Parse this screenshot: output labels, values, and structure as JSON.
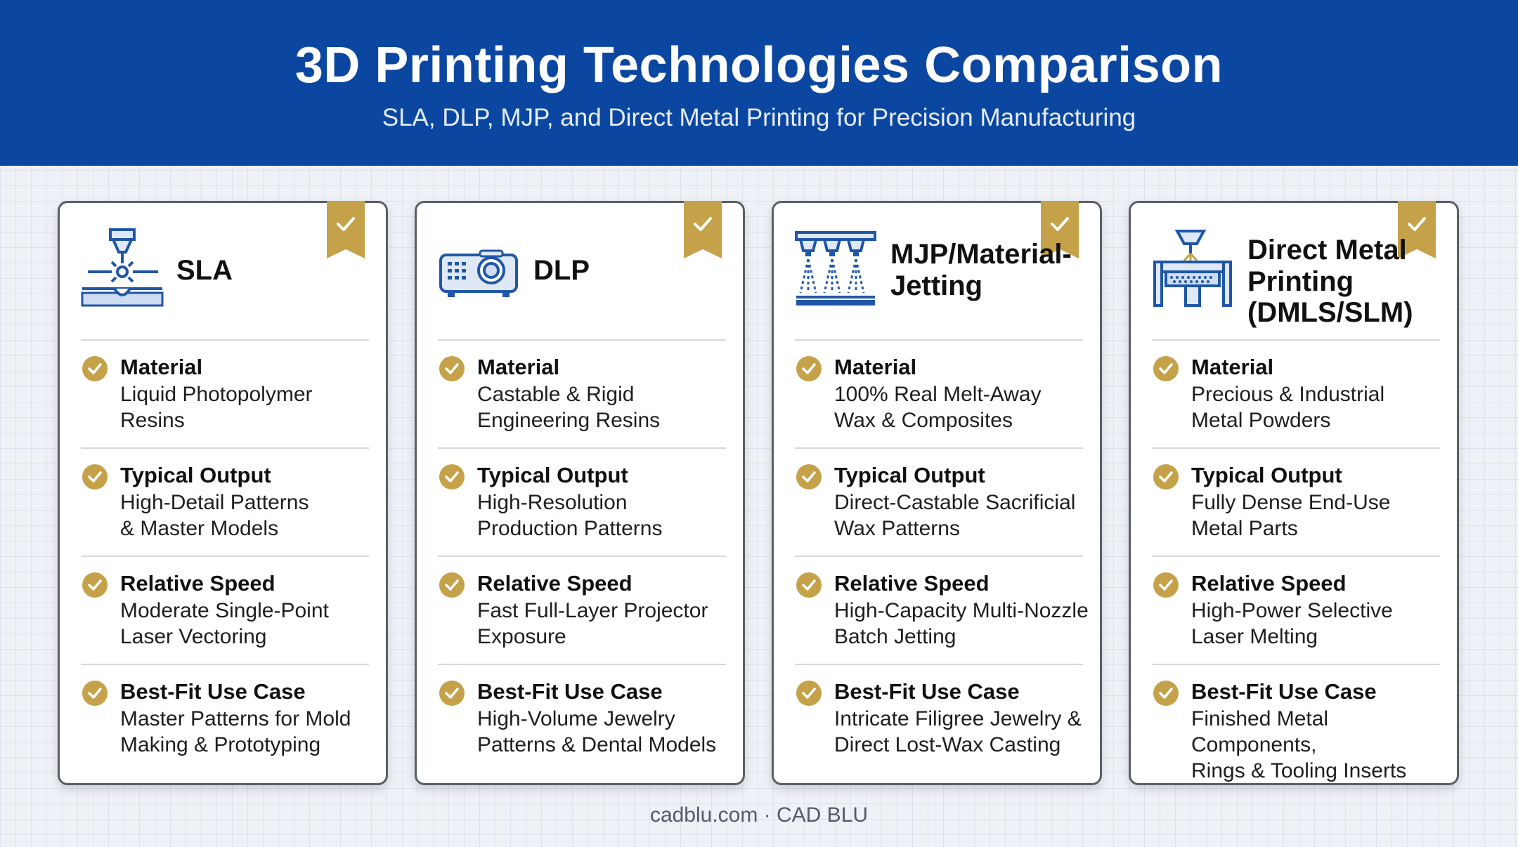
{
  "header": {
    "title": "3D Printing Technologies Comparison",
    "subtitle": "SLA, DLP, MJP, and Direct Metal Printing for Precision Manufacturing"
  },
  "colors": {
    "header_bg": "#0b47a1",
    "accent_gold": "#c5a24a",
    "icon_blue": "#1f56a8"
  },
  "cards": [
    {
      "name": "SLA",
      "icon": "laser-icon",
      "rows": [
        {
          "title": "Material",
          "text": "Liquid Photopolymer\nResins"
        },
        {
          "title": "Typical Output",
          "text": "High-Detail Patterns\n& Master Models"
        },
        {
          "title": "Relative Speed",
          "text": "Moderate Single-Point\nLaser Vectoring"
        },
        {
          "title": "Best-Fit Use Case",
          "text": "Master Patterns for Mold\nMaking & Prototyping"
        }
      ]
    },
    {
      "name": "DLP",
      "icon": "projector-icon",
      "rows": [
        {
          "title": "Material",
          "text": "Castable & Rigid\nEngineering Resins"
        },
        {
          "title": "Typical Output",
          "text": "High-Resolution\nProduction Patterns"
        },
        {
          "title": "Relative Speed",
          "text": "Fast Full-Layer Projector\nExposure"
        },
        {
          "title": "Best-Fit Use Case",
          "text": "High-Volume Jewelry\nPatterns & Dental Models"
        }
      ]
    },
    {
      "name": "MJP/Material-\nJetting",
      "icon": "multi-nozzle-icon",
      "rows": [
        {
          "title": "Material",
          "text": "100% Real Melt-Away\nWax & Composites"
        },
        {
          "title": "Typical Output",
          "text": "Direct-Castable Sacrificial\nWax Patterns"
        },
        {
          "title": "Relative Speed",
          "text": "High-Capacity Multi-Nozzle\nBatch Jetting"
        },
        {
          "title": "Best-Fit Use Case",
          "text": "Intricate Filigree Jewelry &\nDirect Lost-Wax Casting"
        }
      ]
    },
    {
      "name": "Direct Metal\nPrinting\n(DMLS/SLM)",
      "icon": "metal-powder-bed-icon",
      "rows": [
        {
          "title": "Material",
          "text": "Precious & Industrial\nMetal Powders"
        },
        {
          "title": "Typical Output",
          "text": "Fully Dense End-Use\nMetal Parts"
        },
        {
          "title": "Relative Speed",
          "text": "High-Power Selective\nLaser Melting"
        },
        {
          "title": "Best-Fit Use Case",
          "text": "Finished Metal Components,\nRings & Tooling Inserts"
        }
      ]
    }
  ],
  "footer": {
    "text": "cadblu.com · CAD BLU"
  }
}
